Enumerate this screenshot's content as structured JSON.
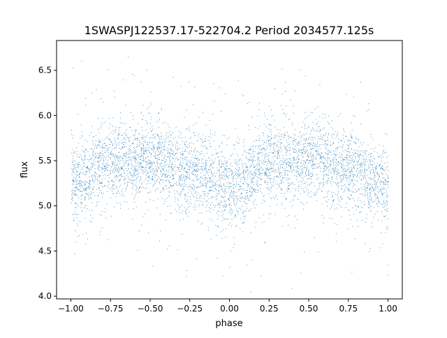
{
  "chart_data": {
    "type": "scatter",
    "title": "1SWASPJ122537.17-522704.2 Period 2034577.125s",
    "xlabel": "phase",
    "ylabel": "flux",
    "xlim": [
      -1.09,
      1.09
    ],
    "ylim": [
      3.97,
      6.83
    ],
    "xticks": [
      -1.0,
      -0.75,
      -0.5,
      -0.25,
      0.0,
      0.25,
      0.5,
      0.75,
      1.0
    ],
    "xtick_labels": [
      "−1.00",
      "−0.75",
      "−0.50",
      "−0.25",
      "0.00",
      "0.25",
      "0.50",
      "0.75",
      "1.00"
    ],
    "yticks": [
      4.0,
      4.5,
      5.0,
      5.5,
      6.0,
      6.5
    ],
    "ytick_labels": [
      "4.0",
      "4.5",
      "5.0",
      "5.5",
      "6.0",
      "6.5"
    ],
    "grid": false,
    "marker_color": "#1f77b4",
    "n_points_approx": 5000,
    "binned_profile": {
      "phase": [
        -1.0,
        -0.75,
        -0.5,
        -0.25,
        0.0,
        0.25,
        0.5,
        0.75,
        1.0
      ],
      "mean_flux": [
        5.25,
        5.5,
        5.5,
        5.4,
        5.22,
        5.48,
        5.52,
        5.42,
        5.24
      ]
    },
    "scatter_spread": 0.22
  }
}
